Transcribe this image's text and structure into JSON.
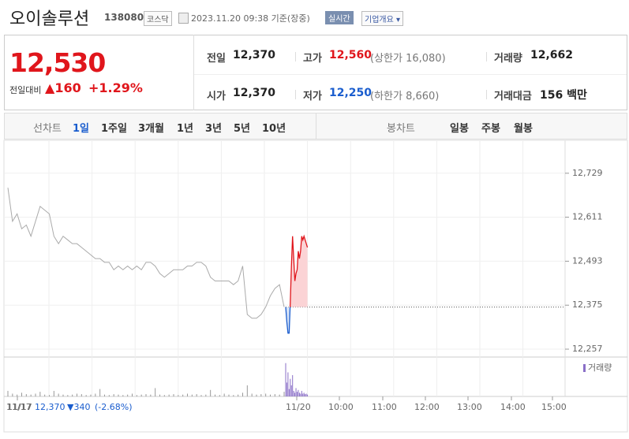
{
  "header": {
    "name": "오이솔루션",
    "code": "138080",
    "market": "코스닥",
    "timestamp": "2023.11.20 09:38 기준(장중)",
    "realtime": "실시간",
    "company_info": "기업개요"
  },
  "quote": {
    "price": "12,530",
    "change_label": "전일대비",
    "change_arrow": "▲",
    "change": "160",
    "change_rate": "+1.29%",
    "rows": [
      [
        {
          "label": "전일",
          "value": "12,370"
        },
        {
          "label": "고가",
          "value": "12,560",
          "sub": "(상한가 16,080)"
        },
        {
          "label": "거래량",
          "value": "12,662"
        }
      ],
      [
        {
          "label": "시가",
          "value": "12,370"
        },
        {
          "label": "저가",
          "value": "12,250",
          "sub": "(하한가 8,660)"
        },
        {
          "label": "거래대금",
          "value": "156 백만"
        }
      ]
    ]
  },
  "tabs": {
    "line_label": "선차트",
    "line_periods": [
      "1일",
      "1주일",
      "3개월",
      "1년",
      "3년",
      "5년",
      "10년"
    ],
    "candle_label": "봉차트",
    "candle_periods": [
      "일봉",
      "주봉",
      "월봉"
    ]
  },
  "chart_data": {
    "type": "line",
    "ylim": [
      12238,
      12792
    ],
    "yticks": [
      {
        "value": 12729,
        "label": "12,729"
      },
      {
        "value": 12611,
        "label": "12,611"
      },
      {
        "value": 12493,
        "label": "12,493"
      },
      {
        "value": 12375,
        "label": "12,375"
      },
      {
        "value": 12257,
        "label": "12,257"
      }
    ],
    "base": 12370,
    "vlim": [
      0,
      4000
    ],
    "xtick_labels": [
      "11/17",
      "11/20",
      "10:00",
      "11:00",
      "12:00",
      "13:00",
      "14:00",
      "15:00"
    ],
    "volume_label": "거래량",
    "legend": {
      "date": "11/17",
      "price": "12,370",
      "change": "▼340",
      "rate": "(-2.68%)"
    },
    "series": [
      {
        "color": "#aaaaaa",
        "values": [
          12690,
          12600,
          12620,
          12580,
          12590,
          12560,
          12600,
          12640,
          12630,
          12620,
          12560,
          12540,
          12560,
          12550,
          12540,
          12540,
          12530,
          12520,
          12510,
          12500,
          12500,
          12490,
          12490,
          12470,
          12480,
          12470,
          12480,
          12470,
          12480,
          12470,
          12490,
          12490,
          12480,
          12460,
          12450,
          12460,
          12470,
          12470,
          12470,
          12480,
          12480,
          12490,
          12490,
          12480,
          12450,
          12440,
          12440,
          12440,
          12440,
          12430,
          12440,
          12480,
          12350,
          12340,
          12340,
          12350,
          12370,
          12400,
          12420,
          12430,
          12370
        ],
        "volumes": [
          600,
          300,
          200,
          400,
          250,
          200,
          300,
          500,
          200,
          150,
          600,
          300,
          200,
          150,
          200,
          300,
          250,
          150,
          200,
          300,
          800,
          200,
          150,
          250,
          200,
          150,
          200,
          300,
          150,
          200,
          250,
          200,
          900,
          200,
          150,
          200,
          250,
          150,
          200,
          300,
          200,
          250,
          150,
          200,
          700,
          200,
          150,
          300,
          200,
          150,
          200,
          400,
          1200,
          300,
          200,
          250,
          300,
          200,
          250,
          200,
          500
        ]
      },
      {
        "color": "#e0161c",
        "down_color": "#1a5dce",
        "values": [
          12370,
          12330,
          12300,
          12300,
          12380,
          12480,
          12560,
          12500,
          12440,
          12460,
          12470,
          12520,
          12500,
          12520,
          12560,
          12550,
          12560,
          12550,
          12540,
          12530
        ],
        "volumes": [
          3600,
          1500,
          2600,
          800,
          1900,
          1200,
          2300,
          600,
          400,
          900,
          500,
          700,
          400,
          300,
          600,
          300,
          400,
          250,
          300,
          200
        ]
      }
    ]
  }
}
